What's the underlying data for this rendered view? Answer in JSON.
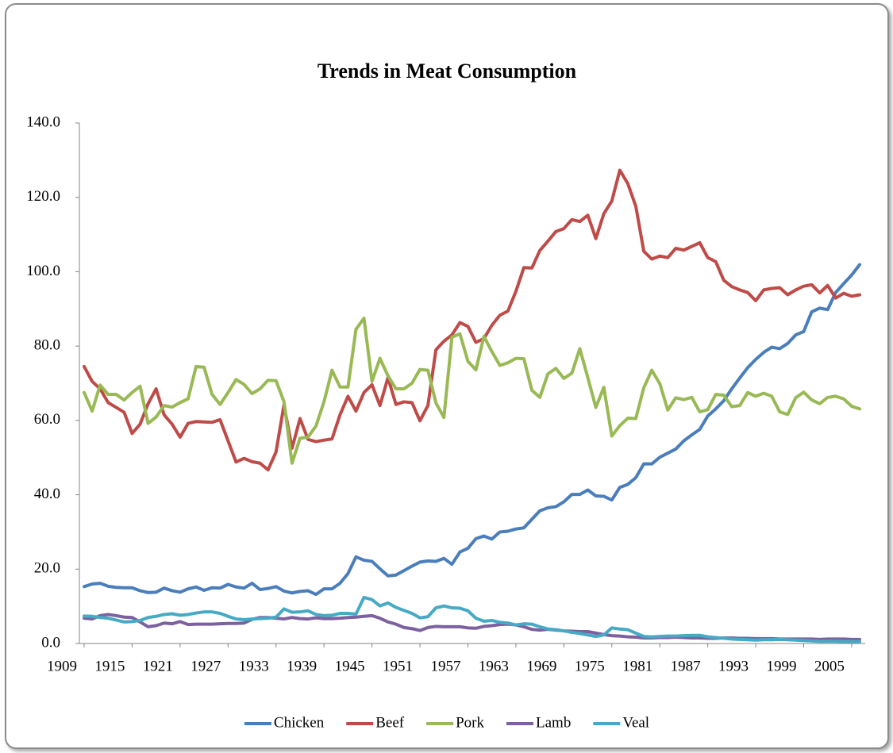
{
  "chart_data": {
    "type": "line",
    "title": "Trends  in Meat Consumption",
    "x": [
      1909,
      1910,
      1911,
      1912,
      1913,
      1914,
      1915,
      1916,
      1917,
      1918,
      1919,
      1920,
      1921,
      1922,
      1923,
      1924,
      1925,
      1926,
      1927,
      1928,
      1929,
      1930,
      1931,
      1932,
      1933,
      1934,
      1935,
      1936,
      1937,
      1938,
      1939,
      1940,
      1941,
      1942,
      1943,
      1944,
      1945,
      1946,
      1947,
      1948,
      1949,
      1950,
      1951,
      1952,
      1953,
      1954,
      1955,
      1956,
      1957,
      1958,
      1959,
      1960,
      1961,
      1962,
      1963,
      1964,
      1965,
      1966,
      1967,
      1968,
      1969,
      1970,
      1971,
      1972,
      1973,
      1974,
      1975,
      1976,
      1977,
      1978,
      1979,
      1980,
      1981,
      1982,
      1983,
      1984,
      1985,
      1986,
      1987,
      1988,
      1989,
      1990,
      1991,
      1992,
      1993,
      1994,
      1995,
      1996,
      1997,
      1998,
      1999,
      2000,
      2001,
      2002,
      2003,
      2004,
      2005,
      2006
    ],
    "xlim": [
      1909,
      2006
    ],
    "xticks": [
      1909,
      1915,
      1921,
      1927,
      1933,
      1939,
      1945,
      1951,
      1957,
      1963,
      1969,
      1975,
      1981,
      1987,
      1993,
      1999,
      2005
    ],
    "ylim": [
      0,
      140
    ],
    "yticks": [
      {
        "value": 0,
        "label": "0.0"
      },
      {
        "value": 20,
        "label": "20.0"
      },
      {
        "value": 40,
        "label": "40.0"
      },
      {
        "value": 60,
        "label": "60.0"
      },
      {
        "value": 80,
        "label": "80.0"
      },
      {
        "value": 100,
        "label": "100.0"
      },
      {
        "value": 120,
        "label": "120.0"
      },
      {
        "value": 140,
        "label": "140.0"
      }
    ],
    "grid": false,
    "legend": "bottom",
    "series": [
      {
        "name": "Chicken",
        "color": "#4a7ebb",
        "values": [
          15.3,
          16,
          16.2,
          15.4,
          15.1,
          15,
          15,
          14.2,
          13.7,
          13.8,
          14.9,
          14.2,
          13.8,
          14.7,
          15.2,
          14.3,
          15,
          14.9,
          15.9,
          15.2,
          14.9,
          16.2,
          14.5,
          14.8,
          15.3,
          14.1,
          13.6,
          14,
          14.2,
          13.2,
          14.7,
          14.7,
          16.2,
          18.8,
          23.3,
          22.4,
          22.1,
          20.1,
          18.2,
          18.4,
          19.6,
          20.8,
          21.9,
          22.2,
          22.1,
          22.9,
          21.3,
          24.6,
          25.6,
          28.2,
          28.9,
          28.1,
          30,
          30.2,
          30.8,
          31.1,
          33.4,
          35.7,
          36.5,
          36.8,
          38.1,
          40.1,
          40.1,
          41.3,
          39.7,
          39.6,
          38.6,
          42,
          42.8,
          44.6,
          48.3,
          48.3,
          50.1,
          51.2,
          52.3,
          54.5,
          56.1,
          57.6,
          61.2,
          63.1,
          65.3,
          68.5,
          71.4,
          74.2,
          76.4,
          78.3,
          79.7,
          79.3,
          80.7,
          83,
          83.9,
          89.2,
          90.2,
          89.8,
          94.4,
          96.8,
          99.1,
          101.9
        ]
      },
      {
        "name": "Beef",
        "color": "#be4b48",
        "values": [
          74.5,
          70.5,
          68.5,
          64.8,
          63.5,
          62.2,
          56.5,
          59,
          64.5,
          68.5,
          61.5,
          59,
          55.5,
          59.2,
          59.7,
          59.6,
          59.5,
          60.2,
          54.5,
          48.8,
          49.8,
          48.9,
          48.5,
          46.7,
          51.5,
          64.2,
          52.5,
          60.5,
          54.9,
          54.3,
          54.7,
          55,
          61.5,
          66.5,
          62.5,
          67.5,
          69.6,
          64,
          71.5,
          64.3,
          65,
          64.8,
          59.9,
          64,
          79,
          81.3,
          83,
          86.3,
          85.3,
          81,
          82,
          85.6,
          88.3,
          89.4,
          94.7,
          101.1,
          101,
          105.7,
          108.2,
          110.8,
          111.6,
          114,
          113.5,
          115.2,
          108.9,
          115.6,
          119,
          127.3,
          123.7,
          117.6,
          105.5,
          103.4,
          104.2,
          103.8,
          106.3,
          105.8,
          106.8,
          107.8,
          103.8,
          102.7,
          97.7,
          96,
          95.1,
          94.4,
          92.2,
          95.1,
          95.5,
          95.7,
          93.8,
          95.1,
          96.1,
          96.5,
          94.3,
          96.3,
          92.9,
          94.2,
          93.4,
          93.8
        ]
      },
      {
        "name": "Pork",
        "color": "#98b954",
        "values": [
          67.5,
          62.5,
          69.5,
          67,
          67,
          65.5,
          67.5,
          69.2,
          59.2,
          60.9,
          64,
          63.6,
          64.8,
          65.8,
          74.5,
          74.3,
          67,
          64.3,
          67.5,
          71,
          69.7,
          67.2,
          68.5,
          70.8,
          70.7,
          65,
          48.5,
          55.2,
          55.5,
          58.5,
          65,
          73.5,
          69,
          69,
          84.5,
          87.5,
          70.5,
          76.7,
          72,
          68.5,
          68.5,
          70,
          73.7,
          73.5,
          64.7,
          60.8,
          82.4,
          83.3,
          75.9,
          73.6,
          82.6,
          78.5,
          74.8,
          75.5,
          76.7,
          76.6,
          68.1,
          66.2,
          72.5,
          74,
          71.3,
          72.7,
          79.3,
          71.5,
          63.5,
          68.9,
          55.8,
          58.6,
          60.6,
          60.5,
          68.8,
          73.5,
          69.9,
          62.8,
          66.1,
          65.6,
          66.2,
          62.3,
          62.9,
          67,
          66.8,
          63.7,
          64,
          67.5,
          66.5,
          67.3,
          66.5,
          62.3,
          61.6,
          66.1,
          67.6,
          65.5,
          64.5,
          66.2,
          66.5,
          65.8,
          63.8,
          63.1
        ]
      },
      {
        "name": "Lamb",
        "color": "#7d60a0",
        "values": [
          6.8,
          6.6,
          7.5,
          7.8,
          7.5,
          7.1,
          7,
          5.8,
          4.5,
          4.8,
          5.5,
          5.3,
          5.9,
          5.1,
          5.2,
          5.2,
          5.2,
          5.3,
          5.4,
          5.4,
          5.5,
          6.5,
          7,
          7,
          6.8,
          6.6,
          7,
          6.7,
          6.6,
          6.9,
          6.7,
          6.7,
          6.8,
          7,
          7.1,
          7.3,
          7.5,
          6.8,
          5.8,
          5.2,
          4.3,
          4,
          3.5,
          4.3,
          4.6,
          4.5,
          4.5,
          4.5,
          4.2,
          4.1,
          4.6,
          4.8,
          5.1,
          5.2,
          5,
          4.5,
          3.8,
          3.6,
          3.8,
          3.6,
          3.4,
          3.3,
          3.2,
          3.2,
          2.8,
          2.4,
          2.1,
          2,
          1.8,
          1.7,
          1.5,
          1.5,
          1.6,
          1.6,
          1.7,
          1.6,
          1.5,
          1.5,
          1.4,
          1.4,
          1.5,
          1.5,
          1.4,
          1.4,
          1.3,
          1.3,
          1.3,
          1.2,
          1.2,
          1.2,
          1.2,
          1.2,
          1.1,
          1.2,
          1.2,
          1.2,
          1.1,
          1.1
        ]
      },
      {
        "name": "Veal",
        "color": "#46aac5",
        "values": [
          7.4,
          7.3,
          7,
          6.8,
          6.3,
          5.8,
          5.9,
          6.2,
          7,
          7.3,
          7.8,
          8,
          7.6,
          7.8,
          8.2,
          8.5,
          8.5,
          8.1,
          7.3,
          6.6,
          6.4,
          6.6,
          6.7,
          6.8,
          7.1,
          9.3,
          8.4,
          8.5,
          8.8,
          7.8,
          7.5,
          7.6,
          8.1,
          8.1,
          7.9,
          12.4,
          11.8,
          10.1,
          10.9,
          9.7,
          8.9,
          8.1,
          6.9,
          7.2,
          9.6,
          10.1,
          9.6,
          9.5,
          8.8,
          6.8,
          6,
          6.2,
          5.7,
          5.5,
          5,
          5.3,
          5.2,
          4.5,
          3.9,
          3.7,
          3.4,
          3,
          2.7,
          2.3,
          1.9,
          2.3,
          4.2,
          3.9,
          3.7,
          2.8,
          1.9,
          1.8,
          1.9,
          2,
          2,
          2.1,
          2.2,
          2.2,
          1.8,
          1.6,
          1.4,
          1.2,
          1.1,
          1,
          0.9,
          1,
          1,
          1.1,
          1,
          0.9,
          0.8,
          0.7,
          0.6,
          0.6,
          0.6,
          0.5,
          0.5,
          0.5
        ]
      }
    ]
  }
}
